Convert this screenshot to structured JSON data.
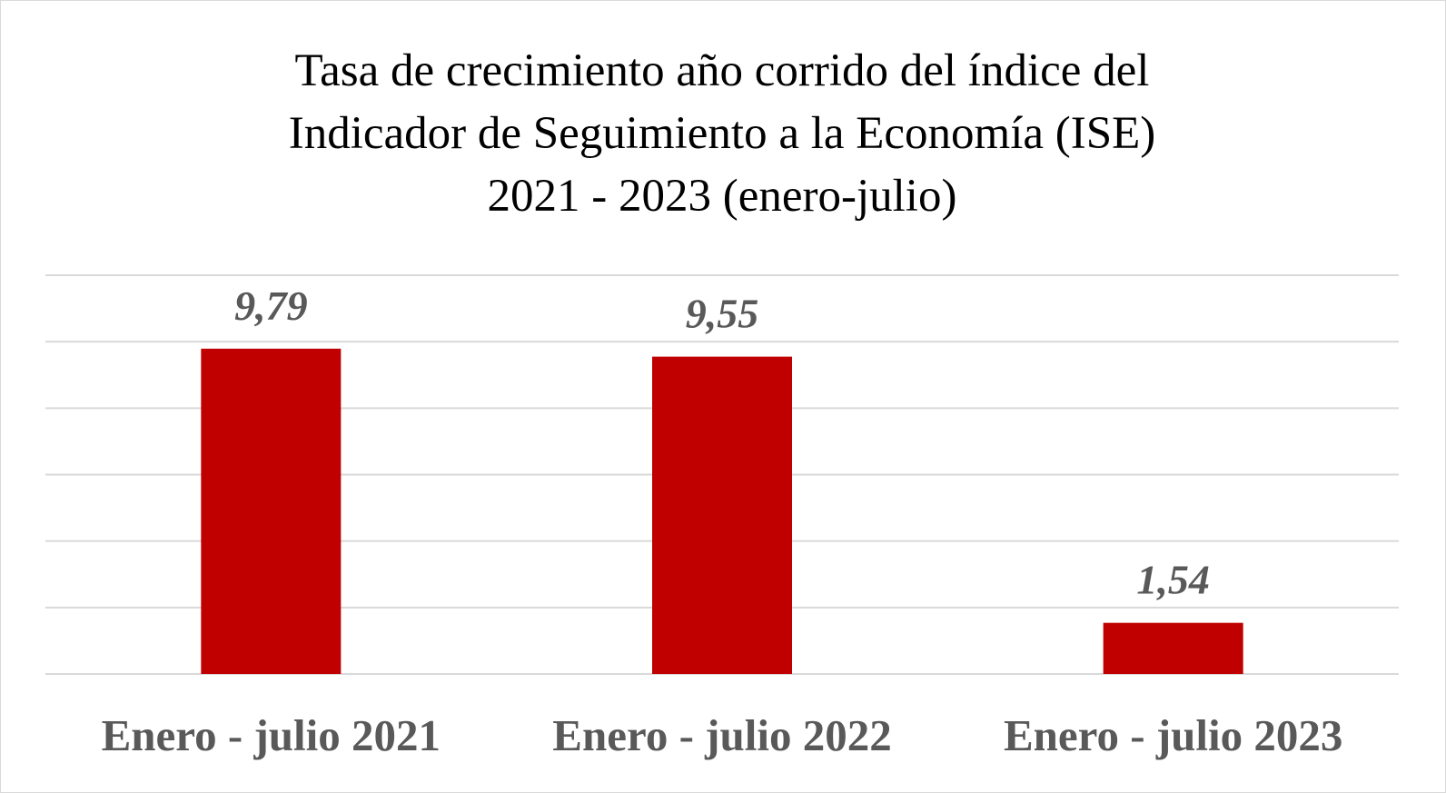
{
  "chart_data": {
    "type": "bar",
    "title_lines": [
      "Tasa de crecimiento año corrido del índice del",
      "Indicador de Seguimiento a la Economía (ISE)",
      "2021 - 2023 (enero-julio)"
    ],
    "categories": [
      "Enero - julio 2021",
      "Enero - julio 2022",
      "Enero - julio 2023"
    ],
    "values": [
      9.79,
      9.55,
      1.54
    ],
    "data_labels": [
      "9,79",
      "9,55",
      "1,54"
    ],
    "ylim": [
      0,
      12
    ],
    "grid": true,
    "legend": "none",
    "colors": {
      "bar": "#c00000",
      "gridline": "#d9d9d9",
      "label": "#595959"
    }
  }
}
